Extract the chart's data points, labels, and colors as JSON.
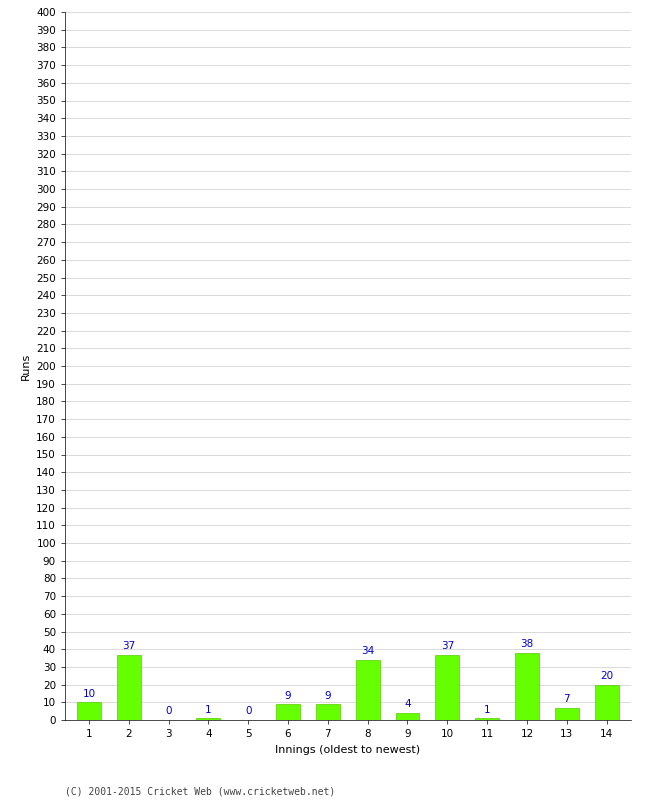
{
  "xlabel": "Innings (oldest to newest)",
  "ylabel": "Runs",
  "categories": [
    1,
    2,
    3,
    4,
    5,
    6,
    7,
    8,
    9,
    10,
    11,
    12,
    13,
    14
  ],
  "values": [
    10,
    37,
    0,
    1,
    0,
    9,
    9,
    34,
    4,
    37,
    1,
    38,
    7,
    20
  ],
  "bar_color": "#66ff00",
  "bar_edge_color": "#55cc00",
  "label_color": "#0000cc",
  "ylim": [
    0,
    400
  ],
  "ytick_step": 10,
  "label_fontsize": 7.5,
  "axis_fontsize": 7.5,
  "xlabel_fontsize": 8,
  "ylabel_fontsize": 8,
  "footer_text": "(C) 2001-2015 Cricket Web (www.cricketweb.net)",
  "background_color": "#ffffff",
  "grid_color": "#cccccc"
}
